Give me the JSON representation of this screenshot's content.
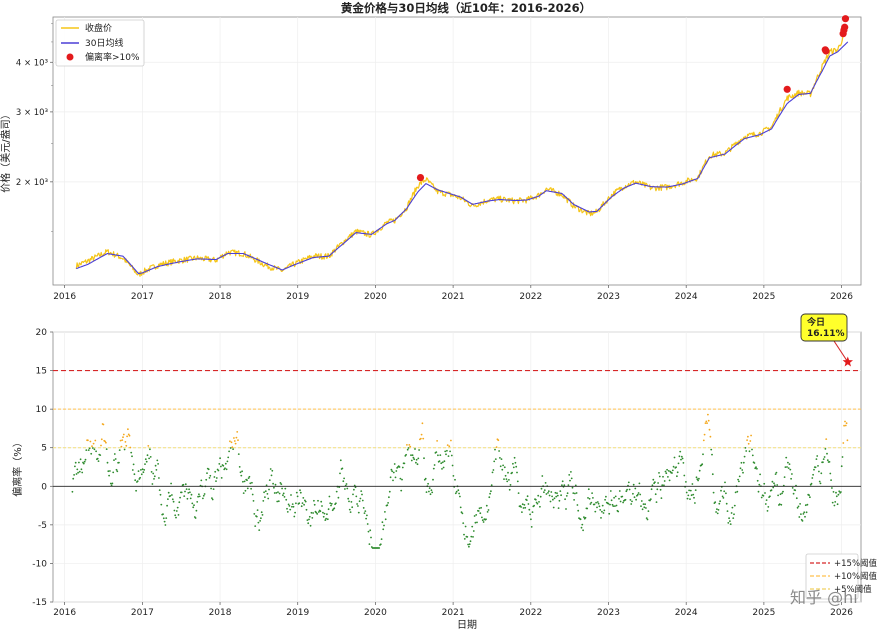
{
  "chart_data": [
    {
      "type": "line",
      "title": "黄金价格与30日均线（近10年：2016-2026）",
      "ylabel": "价格（美元/盎司）",
      "yscale": "log",
      "ylim": [
        1100,
        5200
      ],
      "xlim": [
        2015.85,
        2026.25
      ],
      "grid": true,
      "legend": "top-left",
      "x_ticks": [
        "2016",
        "2017",
        "2018",
        "2019",
        "2020",
        "2021",
        "2022",
        "2023",
        "2024",
        "2025",
        "2026"
      ],
      "y_ticks": [
        {
          "value": 2000,
          "label": "2 × 10³"
        },
        {
          "value": 3000,
          "label": "3 × 10³"
        },
        {
          "value": 4000,
          "label": "4 × 10³"
        }
      ],
      "series": [
        {
          "name": "收盘价",
          "color": "#f5c518"
        },
        {
          "name": "30日均线",
          "color": "#4b3fd6"
        },
        {
          "name": "偏离率>10%",
          "color": "#e31a1c"
        }
      ],
      "trend": {
        "x": [
          2016.15,
          2016.3,
          2016.55,
          2016.75,
          2016.95,
          2017.0,
          2017.2,
          2017.45,
          2017.7,
          2017.95,
          2018.1,
          2018.3,
          2018.6,
          2018.8,
          2018.95,
          2019.2,
          2019.4,
          2019.6,
          2019.75,
          2019.95,
          2020.15,
          2020.25,
          2020.4,
          2020.55,
          2020.65,
          2020.8,
          2020.95,
          2021.1,
          2021.25,
          2021.45,
          2021.6,
          2021.8,
          2021.95,
          2022.1,
          2022.2,
          2022.4,
          2022.55,
          2022.75,
          2022.85,
          2023.05,
          2023.2,
          2023.35,
          2023.55,
          2023.75,
          2023.95,
          2024.15,
          2024.3,
          2024.5,
          2024.75,
          2024.95,
          2025.1,
          2025.3,
          2025.45,
          2025.6,
          2025.75,
          2025.85,
          2025.95,
          2026.08
        ],
        "close": [
          1230,
          1265,
          1335,
          1285,
          1165,
          1185,
          1235,
          1265,
          1285,
          1270,
          1330,
          1320,
          1230,
          1195,
          1240,
          1300,
          1300,
          1420,
          1500,
          1470,
          1580,
          1600,
          1720,
          1960,
          2030,
          1890,
          1860,
          1820,
          1740,
          1800,
          1810,
          1790,
          1800,
          1850,
          1920,
          1860,
          1740,
          1660,
          1680,
          1860,
          1950,
          2000,
          1930,
          1940,
          1990,
          2050,
          2330,
          2360,
          2600,
          2650,
          2750,
          3250,
          3350,
          3330,
          3900,
          4250,
          4300,
          4900
        ],
        "ma30": [
          1210,
          1240,
          1320,
          1300,
          1175,
          1180,
          1225,
          1255,
          1280,
          1275,
          1320,
          1320,
          1245,
          1200,
          1235,
          1290,
          1300,
          1405,
          1490,
          1475,
          1570,
          1600,
          1710,
          1890,
          1980,
          1910,
          1870,
          1830,
          1755,
          1790,
          1805,
          1795,
          1800,
          1840,
          1900,
          1870,
          1755,
          1680,
          1685,
          1840,
          1930,
          1985,
          1945,
          1940,
          1975,
          2040,
          2300,
          2350,
          2570,
          2630,
          2720,
          3150,
          3320,
          3340,
          3800,
          4150,
          4250,
          4500
        ]
      },
      "high_deviation_points": [
        {
          "date": 2020.58,
          "value": 2050
        },
        {
          "date": 2025.3,
          "value": 3420
        },
        {
          "date": 2025.79,
          "value": 4300
        },
        {
          "date": 2025.8,
          "value": 4270
        },
        {
          "date": 2026.02,
          "value": 4720
        },
        {
          "date": 2026.03,
          "value": 4820
        },
        {
          "date": 2026.04,
          "value": 4900
        },
        {
          "date": 2026.05,
          "value": 5150
        }
      ]
    },
    {
      "type": "scatter",
      "ylabel": "偏离率（%）",
      "xlabel": "日期",
      "ylim": [
        -15,
        20
      ],
      "xlim": [
        2015.85,
        2026.25
      ],
      "grid": true,
      "legend": "bottom-right",
      "x_ticks": [
        "2016",
        "2017",
        "2018",
        "2019",
        "2020",
        "2021",
        "2022",
        "2023",
        "2024",
        "2025",
        "2026"
      ],
      "y_ticks": [
        "-15",
        "-10",
        "-5",
        "0",
        "5",
        "10",
        "15",
        "20"
      ],
      "thresholds": [
        {
          "name": "+15%阈值",
          "value": 15,
          "color": "#d62728"
        },
        {
          "name": "+10%阈值",
          "value": 10,
          "color": "#ffc04d"
        },
        {
          "name": "+5%阈值",
          "value": 5,
          "color": "#fff2a8"
        }
      ],
      "annotation": {
        "line1": "今日",
        "line2": "16.11%",
        "date": 2026.08,
        "value": 16.11
      },
      "colors": {
        "low": "#2e8b2e",
        "mid": "#f4a81d",
        "high": "#e31a1c",
        "zero": "#222222"
      }
    }
  ],
  "watermark": "知乎 @hi"
}
